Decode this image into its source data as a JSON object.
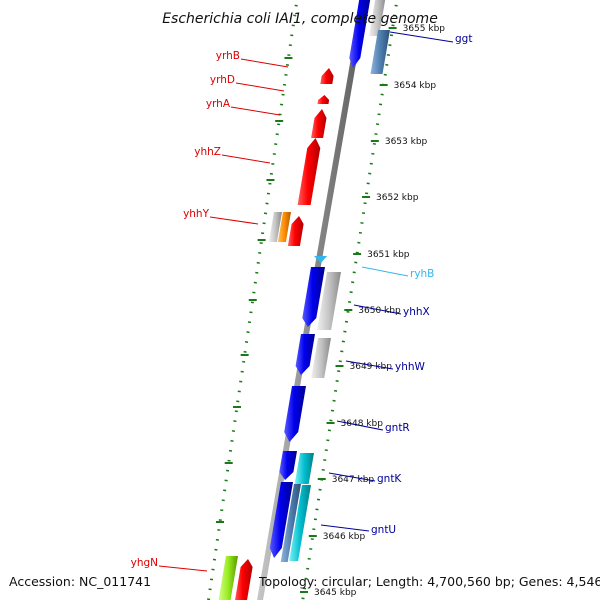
{
  "title": "Escherichia coli IAI1, complete genome",
  "footer": {
    "accession": "Accession: NC_011741",
    "topology": "Topology: circular; Length: 4,700,560 bp; Genes: 4,546"
  },
  "colors": {
    "backbone": "#8c8c8c",
    "dotted_track": "#1a7a1a",
    "gene_red": "#ff0000",
    "gene_blue": "#0000ee",
    "gene_grey": "#bdbdbd",
    "gene_steel": "#4f7fb0",
    "gene_cyan": "#00bfcf",
    "gene_orange": "#ff8c00",
    "gene_lime": "#9aee22",
    "rna_skyblue": "#33b5ee",
    "label_red": "#dd0000",
    "label_navy": "#000099",
    "label_sky": "#33b5ee"
  },
  "ticks": [
    {
      "label": "3655 kbp"
    },
    {
      "label": "3654 kbp"
    },
    {
      "label": "3653 kbp"
    },
    {
      "label": "3652 kbp"
    },
    {
      "label": "3651 kbp"
    },
    {
      "label": "3650 kbp"
    },
    {
      "label": "3649 kbp"
    },
    {
      "label": "3648 kbp"
    },
    {
      "label": "3647 kbp"
    },
    {
      "label": "3646 kbp"
    },
    {
      "label": "3645 kbp"
    }
  ],
  "gene_labels": {
    "left": [
      {
        "name": "yrhB",
        "color": "label_red"
      },
      {
        "name": "yrhD",
        "color": "label_red"
      },
      {
        "name": "yrhA",
        "color": "label_red"
      },
      {
        "name": "yhhZ",
        "color": "label_red"
      },
      {
        "name": "yhhY",
        "color": "label_red"
      },
      {
        "name": "yhgN",
        "color": "label_red"
      }
    ],
    "right": [
      {
        "name": "ggt",
        "color": "label_navy"
      },
      {
        "name": "ryhB",
        "color": "label_sky"
      },
      {
        "name": "yhhX",
        "color": "label_navy"
      },
      {
        "name": "yhhW",
        "color": "label_navy"
      },
      {
        "name": "gntR",
        "color": "label_navy"
      },
      {
        "name": "gntK",
        "color": "label_navy"
      },
      {
        "name": "gntU",
        "color": "label_navy"
      }
    ]
  }
}
